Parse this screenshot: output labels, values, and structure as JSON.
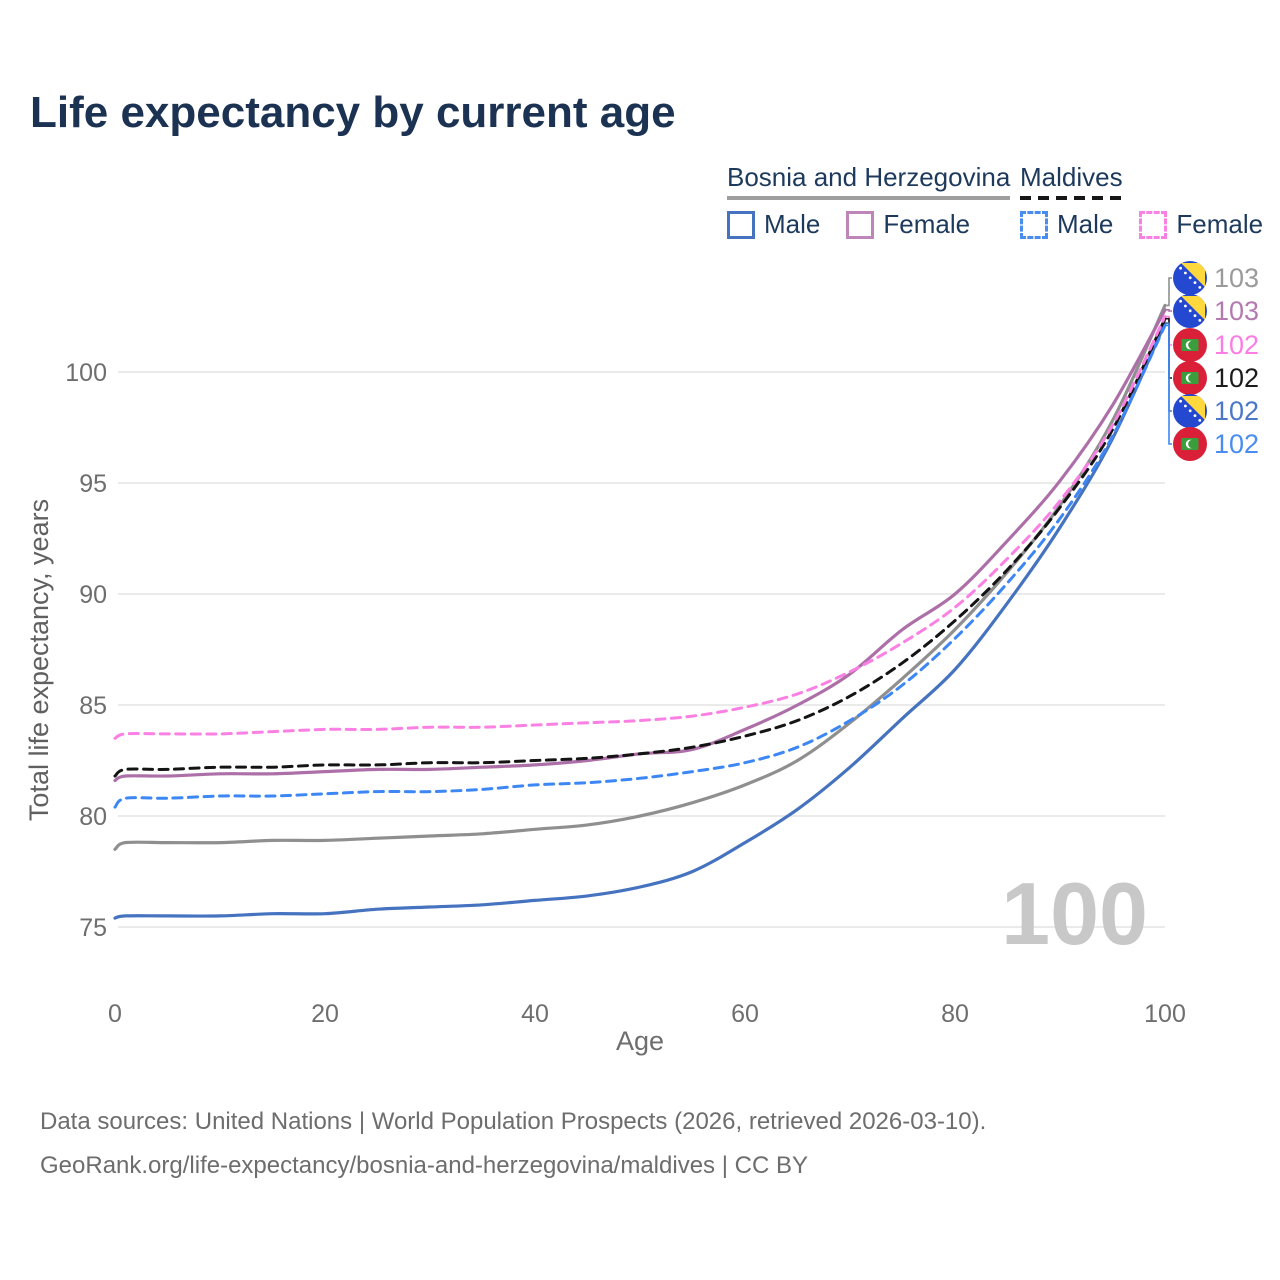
{
  "title": "Life expectancy by current age",
  "legend": {
    "groups": [
      {
        "id": "bosnia",
        "label": "Bosnia and Herzegovina",
        "underline_style": "solid",
        "underline_color": "#9e9e9e",
        "items": [
          {
            "id": "bosnia_male",
            "label": "Male",
            "swatch_color": "#4673bf",
            "swatch_style": "solid"
          },
          {
            "id": "bosnia_female",
            "label": "Female",
            "swatch_color": "#bd85b8",
            "swatch_style": "solid"
          }
        ]
      },
      {
        "id": "maldives",
        "label": "Maldives",
        "underline_style": "dashed",
        "underline_color": "#161616",
        "items": [
          {
            "id": "maldives_male",
            "label": "Male",
            "swatch_color": "#4a8df0",
            "swatch_style": "dashed"
          },
          {
            "id": "maldives_female",
            "label": "Female",
            "swatch_color": "#fb80e3",
            "swatch_style": "dashed"
          }
        ]
      }
    ]
  },
  "chart_data": {
    "type": "line",
    "title": "Life expectancy by current age",
    "xlabel": "Age",
    "ylabel": "Total life expectancy, years",
    "xticks": [
      0,
      20,
      40,
      60,
      80,
      100
    ],
    "yticks": [
      75,
      80,
      85,
      90,
      95,
      100
    ],
    "xlim": [
      0,
      100
    ],
    "ylim": [
      75,
      103.5
    ],
    "grid": "horizontal-only",
    "legend_position": "top-right",
    "watermark": "100",
    "ages": [
      0,
      1,
      5,
      10,
      15,
      20,
      25,
      30,
      35,
      40,
      45,
      50,
      55,
      60,
      65,
      70,
      75,
      80,
      85,
      90,
      95,
      100
    ],
    "series": [
      {
        "id": "bosnia_total",
        "country": "Bosnia and Herzegovina",
        "sex": "Total",
        "color": "#8f8f8f",
        "style": "solid",
        "values": [
          78.5,
          78.8,
          78.8,
          78.8,
          78.9,
          78.9,
          79.0,
          79.1,
          79.2,
          79.4,
          79.6,
          80.0,
          80.6,
          81.4,
          82.5,
          84.2,
          86.2,
          88.4,
          91.0,
          94.0,
          97.8,
          103.0
        ]
      },
      {
        "id": "bosnia_female",
        "country": "Bosnia and Herzegovina",
        "sex": "Female",
        "color": "#ad6fa8",
        "style": "solid",
        "values": [
          81.6,
          81.8,
          81.8,
          81.9,
          81.9,
          82.0,
          82.1,
          82.1,
          82.2,
          82.3,
          82.5,
          82.8,
          83.0,
          83.9,
          85.0,
          86.4,
          88.4,
          90.0,
          92.4,
          95.1,
          98.5,
          102.8
        ]
      },
      {
        "id": "bosnia_male",
        "country": "Bosnia and Herzegovina",
        "sex": "Male",
        "color": "#4673bf",
        "style": "solid",
        "values": [
          75.4,
          75.5,
          75.5,
          75.5,
          75.6,
          75.6,
          75.8,
          75.9,
          76.0,
          76.2,
          76.4,
          76.8,
          77.5,
          78.8,
          80.3,
          82.2,
          84.4,
          86.6,
          89.6,
          93.0,
          97.0,
          102.2
        ]
      },
      {
        "id": "maldives_total",
        "country": "Maldives",
        "sex": "Total",
        "color": "#141414",
        "style": "dashed",
        "values": [
          81.8,
          82.1,
          82.1,
          82.2,
          82.2,
          82.3,
          82.3,
          82.4,
          82.4,
          82.5,
          82.6,
          82.8,
          83.1,
          83.6,
          84.3,
          85.4,
          86.9,
          88.8,
          91.1,
          93.9,
          97.4,
          102.4
        ]
      },
      {
        "id": "maldives_female",
        "country": "Maldives",
        "sex": "Female",
        "color": "#fb80e3",
        "style": "dashed",
        "values": [
          83.5,
          83.7,
          83.7,
          83.7,
          83.8,
          83.9,
          83.9,
          84.0,
          84.0,
          84.1,
          84.2,
          84.3,
          84.5,
          84.9,
          85.5,
          86.5,
          87.8,
          89.4,
          91.6,
          94.2,
          97.6,
          102.5
        ]
      },
      {
        "id": "maldives_male",
        "country": "Maldives",
        "sex": "Male",
        "color": "#3d87f5",
        "style": "dashed",
        "values": [
          80.4,
          80.8,
          80.8,
          80.9,
          80.9,
          81.0,
          81.1,
          81.1,
          81.2,
          81.4,
          81.5,
          81.7,
          82.0,
          82.4,
          83.1,
          84.3,
          85.9,
          88.0,
          90.5,
          93.4,
          97.1,
          102.1
        ]
      }
    ],
    "end_labels": [
      {
        "flag": "bosnia",
        "value": "103",
        "color": "#9a9a9a",
        "series": "bosnia_total"
      },
      {
        "flag": "bosnia",
        "value": "103",
        "color": "#b47ab0",
        "series": "bosnia_female"
      },
      {
        "flag": "maldives",
        "value": "102",
        "color": "#fb7ce5",
        "series": "maldives_female"
      },
      {
        "flag": "maldives",
        "value": "102",
        "color": "#1c1c1c",
        "series": "maldives_total"
      },
      {
        "flag": "bosnia",
        "value": "102",
        "color": "#4a77c6",
        "series": "bosnia_male"
      },
      {
        "flag": "maldives",
        "value": "102",
        "color": "#4a8cf0",
        "series": "maldives_male"
      }
    ]
  },
  "footer": {
    "line1": "Data sources: United Nations | World Population Prospects (2026, retrieved 2026-03-10).",
    "line2": "GeoRank.org/life-expectancy/bosnia-and-herzegovina/maldives | CC BY"
  }
}
